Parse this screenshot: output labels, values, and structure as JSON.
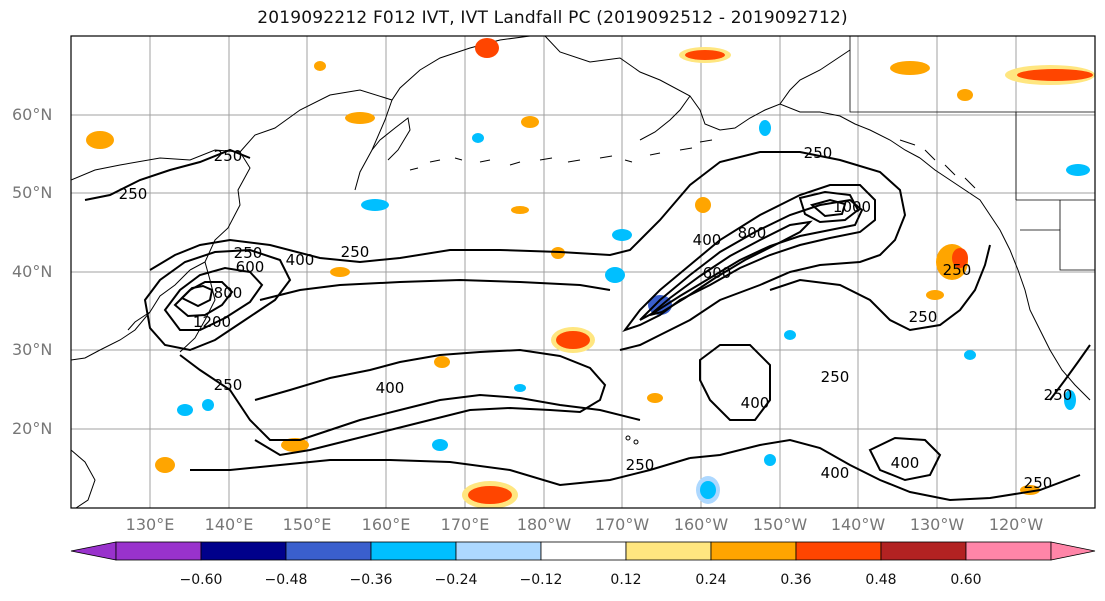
{
  "title": "2019092212 F012 IVT, IVT Landfall PC (2019092512 - 2019092712)",
  "lat_labels": [
    "60°N",
    "50°N",
    "40°N",
    "30°N",
    "20°N"
  ],
  "lon_labels": [
    "130°E",
    "140°E",
    "150°E",
    "160°E",
    "170°E",
    "180°W",
    "170°W",
    "160°W",
    "150°W",
    "140°W",
    "130°W",
    "120°W"
  ],
  "colorbar": {
    "tick_labels": [
      "−0.60",
      "−0.48",
      "−0.36",
      "−0.24",
      "−0.12",
      "0.12",
      "0.24",
      "0.36",
      "0.48",
      "0.60"
    ],
    "colors": [
      "#9932cc",
      "#00008b",
      "#3a5fcd",
      "#00bfff",
      "#add8ff",
      "#ffffff",
      "#ffe680",
      "#ffa500",
      "#ff4500",
      "#b22222",
      "#ff85a8"
    ]
  },
  "contour_labels": [
    "250",
    "250",
    "250",
    "250",
    "250",
    "250",
    "250",
    "250",
    "250",
    "250",
    "250",
    "250",
    "400",
    "400",
    "400",
    "400",
    "400",
    "400",
    "600",
    "600",
    "800",
    "1000",
    "1200",
    "800"
  ],
  "colors": {
    "contour": "#000000",
    "coast": "#000000",
    "grid": "#a0a0a0",
    "pos_light": "#ffe680",
    "pos_mid": "#ffa500",
    "pos_strong": "#ff4500",
    "neg_light": "#add8ff",
    "neg_mid": "#00bfff"
  }
}
